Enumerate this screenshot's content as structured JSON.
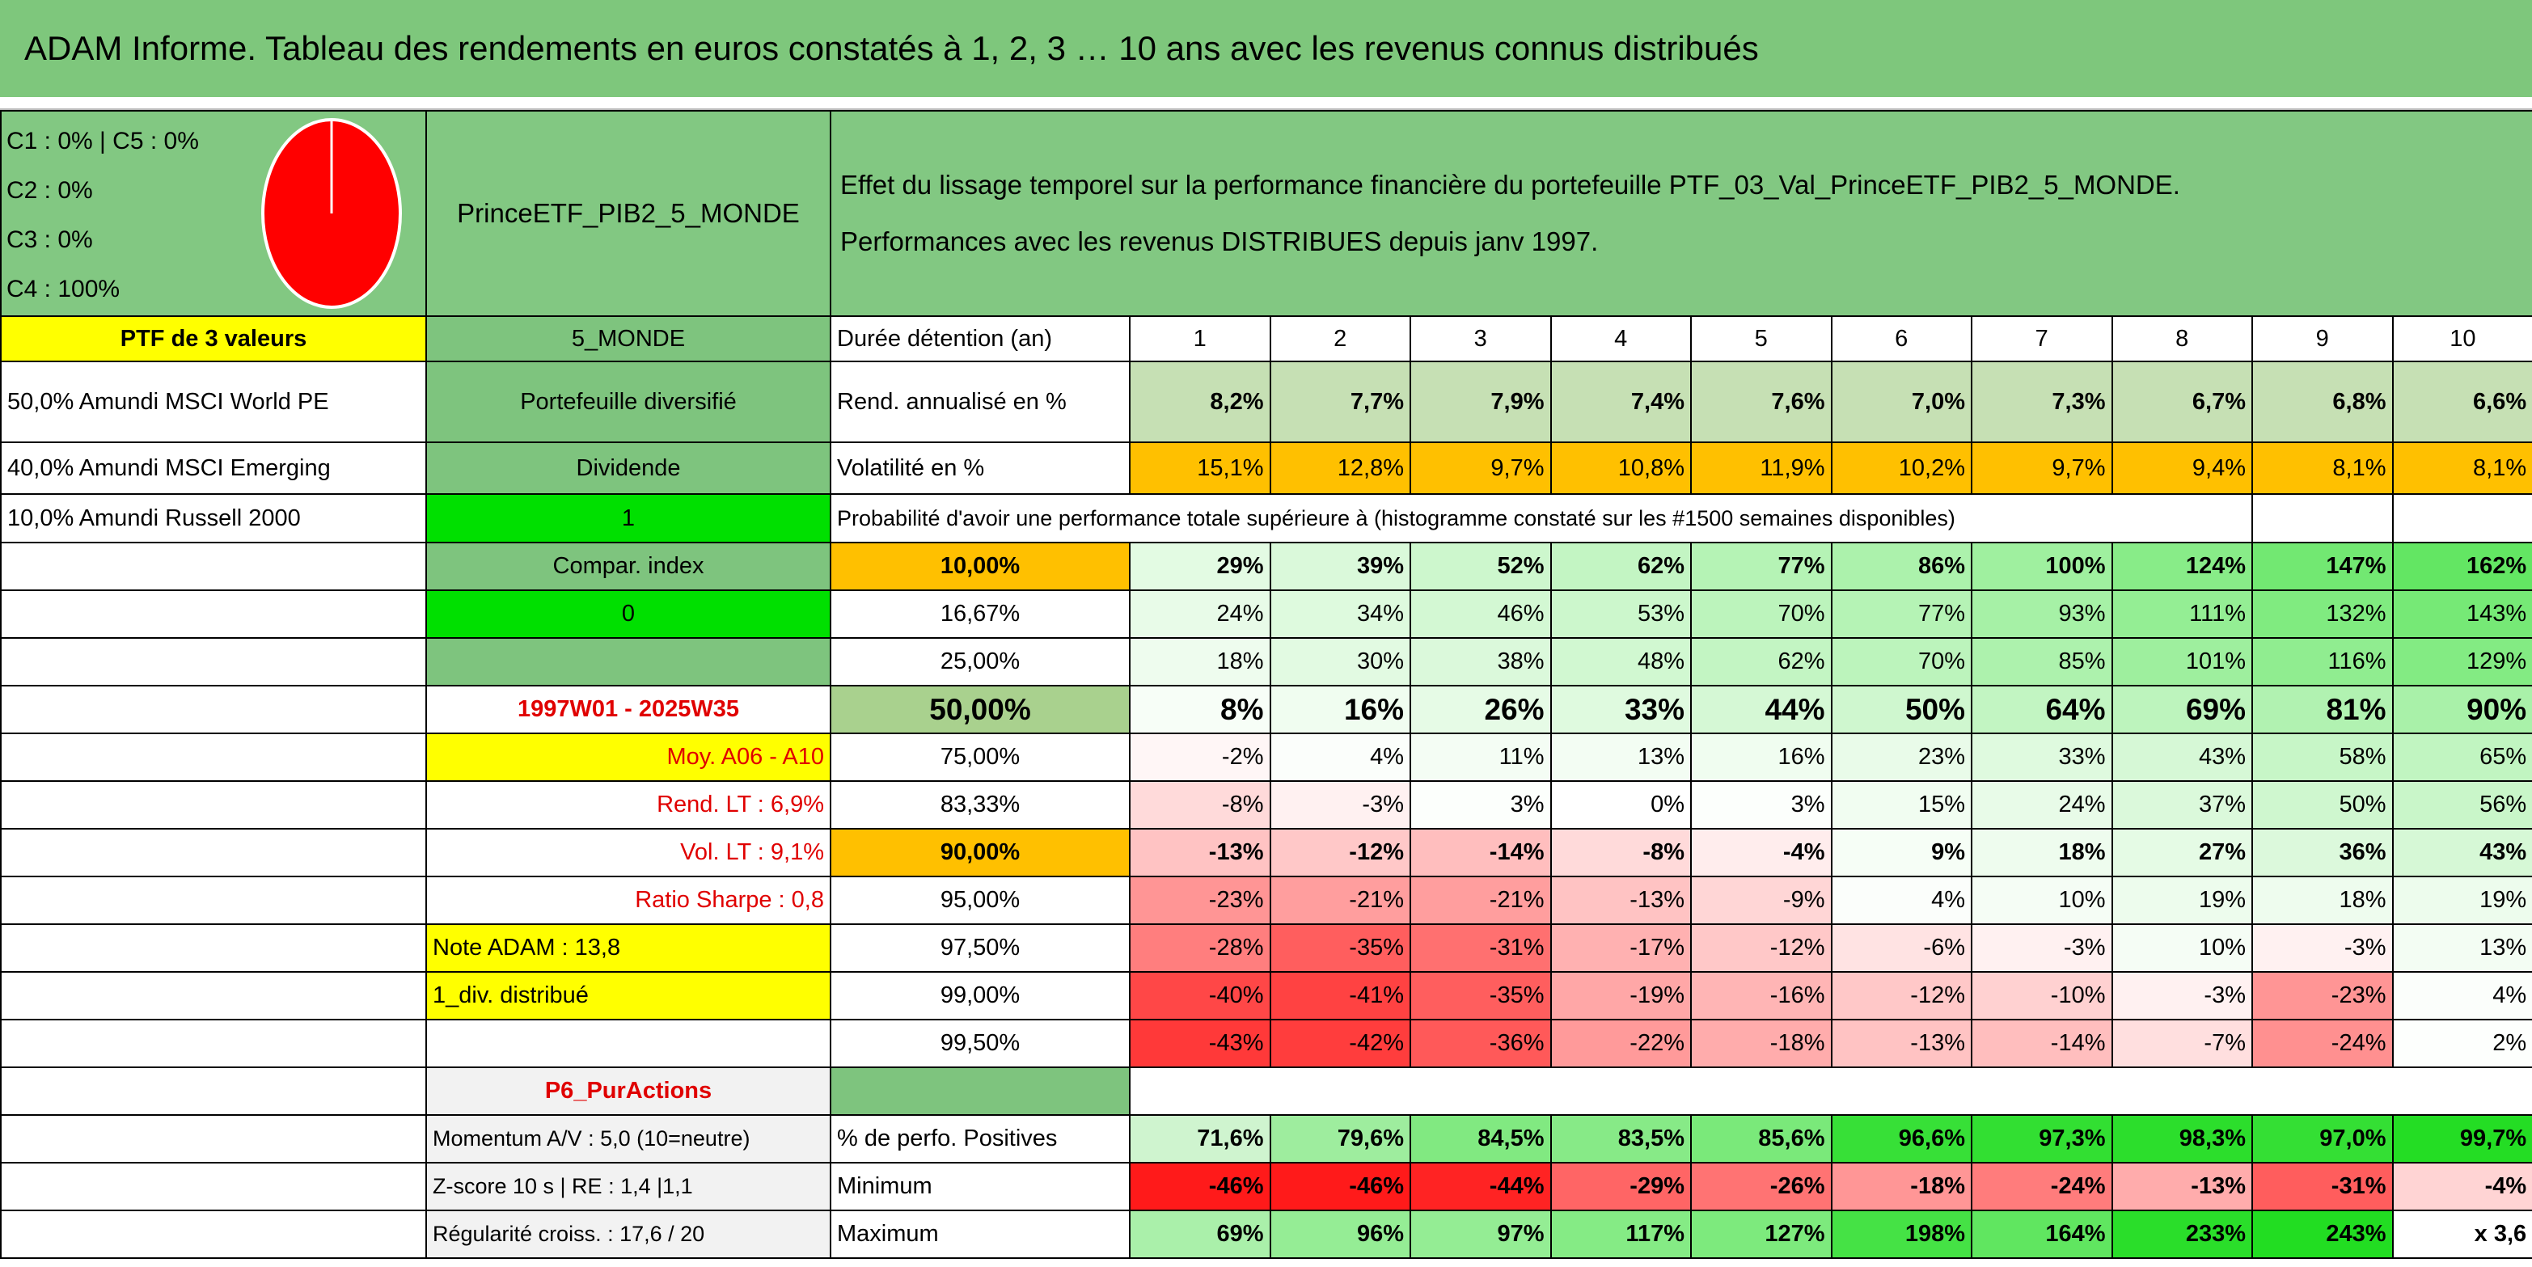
{
  "header": {
    "title": "ADAM Informe. Tableau des rendements en euros constatés à 1, 2, 3 … 10 ans avec les revenus connus distribués"
  },
  "summary": {
    "weights": [
      "C1 : 0% | C5 : 0%",
      "C2 : 0%",
      "C3 : 0%",
      "C4 : 100%"
    ],
    "portfolio": "PrinceETF_PIB2_5_MONDE",
    "description": [
      "Effet du lissage temporel sur la performance financière du portefeuille PTF_03_Val_PrinceETF_PIB2_5_MONDE.",
      "Performances avec les revenus DISTRIBUES depuis janv 1997."
    ]
  },
  "table": {
    "rows": [
      [
        "PTF de 3 valeurs",
        "5_MONDE",
        "Durée détention (an)",
        "1",
        "2",
        "3",
        "4",
        "5",
        "6",
        "7",
        "8",
        "9",
        "10"
      ],
      [
        "50,0% Amundi MSCI World PE",
        "Portefeuille diversifié",
        "Rend. annualisé en %",
        "8,2%",
        "7,7%",
        "7,9%",
        "7,4%",
        "7,6%",
        "7,0%",
        "7,3%",
        "6,7%",
        "6,8%",
        "6,6%"
      ],
      [
        "40,0% Amundi MSCI Emerging",
        "Dividende",
        "Volatilité en %",
        "15,1%",
        "12,8%",
        "9,7%",
        "10,8%",
        "11,9%",
        "10,2%",
        "9,7%",
        "9,4%",
        "8,1%",
        "8,1%"
      ],
      [
        "10,0% Amundi Russell 2000",
        "1",
        "Probabilité d'avoir une performance totale supérieure à (histogramme constaté sur les #1500 semaines disponibles)"
      ],
      [
        null,
        "Compar. index",
        "10,00%",
        "29%",
        "39%",
        "52%",
        "62%",
        "77%",
        "86%",
        "100%",
        "124%",
        "147%",
        "162%"
      ],
      [
        null,
        "0",
        "16,67%",
        "24%",
        "34%",
        "46%",
        "53%",
        "70%",
        "77%",
        "93%",
        "111%",
        "132%",
        "143%"
      ],
      [
        null,
        null,
        "25,00%",
        "18%",
        "30%",
        "38%",
        "48%",
        "62%",
        "70%",
        "85%",
        "101%",
        "116%",
        "129%"
      ],
      [
        null,
        "1997W01 - 2025W35",
        "50,00%",
        "8%",
        "16%",
        "26%",
        "33%",
        "44%",
        "50%",
        "64%",
        "69%",
        "81%",
        "90%"
      ],
      [
        null,
        "Moy. A06 - A10",
        "75,00%",
        "-2%",
        "4%",
        "11%",
        "13%",
        "16%",
        "23%",
        "33%",
        "43%",
        "58%",
        "65%"
      ],
      [
        null,
        "Rend. LT : 6,9%",
        "83,33%",
        "-8%",
        "-3%",
        "3%",
        "0%",
        "3%",
        "15%",
        "24%",
        "37%",
        "50%",
        "56%"
      ],
      [
        null,
        "Vol. LT : 9,1%",
        "90,00%",
        "-13%",
        "-12%",
        "-14%",
        "-8%",
        "-4%",
        "9%",
        "18%",
        "27%",
        "36%",
        "43%"
      ],
      [
        null,
        "Ratio Sharpe : 0,8",
        "95,00%",
        "-23%",
        "-21%",
        "-21%",
        "-13%",
        "-9%",
        "4%",
        "10%",
        "19%",
        "18%",
        "19%"
      ],
      [
        null,
        "Note ADAM : 13,8",
        "97,50%",
        "-28%",
        "-35%",
        "-31%",
        "-17%",
        "-12%",
        "-6%",
        "-3%",
        "10%",
        "-3%",
        "13%"
      ],
      [
        null,
        "1_div. distribué",
        "99,00%",
        "-40%",
        "-41%",
        "-35%",
        "-19%",
        "-16%",
        "-12%",
        "-10%",
        "-3%",
        "-23%",
        "4%"
      ],
      [
        null,
        null,
        "99,50%",
        "-43%",
        "-42%",
        "-36%",
        "-22%",
        "-18%",
        "-13%",
        "-14%",
        "-7%",
        "-24%",
        "2%"
      ],
      [
        null,
        "P6_PurActions"
      ],
      [
        null,
        "Momentum A/V : 5,0 (10=neutre)",
        "% de perfo. Positives",
        "71,6%",
        "79,6%",
        "84,5%",
        "83,5%",
        "85,6%",
        "96,6%",
        "97,3%",
        "98,3%",
        "97,0%",
        "99,7%"
      ],
      [
        null,
        "Z-score 10 s | RE : 1,4 |1,1",
        "Minimum",
        "-46%",
        "-46%",
        "-44%",
        "-29%",
        "-26%",
        "-18%",
        "-24%",
        "-13%",
        "-31%",
        "-4%"
      ],
      [
        null,
        "Régularité croiss. : 17,6 / 20",
        "Maximum",
        "69%",
        "96%",
        "97%",
        "117%",
        "127%",
        "198%",
        "164%",
        "233%",
        "243%",
        "x 3,6"
      ]
    ]
  }
}
